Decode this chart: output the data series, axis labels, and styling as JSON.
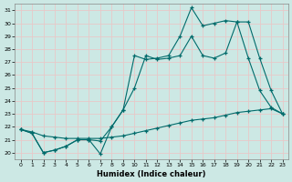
{
  "xlabel": "Humidex (Indice chaleur)",
  "bg_color": "#cce8e4",
  "line_color": "#006b6b",
  "grid_color": "#e8c8c8",
  "ylim": [
    19.5,
    31.5
  ],
  "xlim": [
    -0.5,
    23.5
  ],
  "yticks": [
    20,
    21,
    22,
    23,
    24,
    25,
    26,
    27,
    28,
    29,
    30,
    31
  ],
  "xticks": [
    0,
    1,
    2,
    3,
    4,
    5,
    6,
    7,
    8,
    9,
    10,
    11,
    12,
    13,
    14,
    15,
    16,
    17,
    18,
    19,
    20,
    21,
    22,
    23
  ],
  "line1_x": [
    0,
    1,
    2,
    3,
    4,
    5,
    6,
    7,
    8,
    9,
    10,
    11,
    12,
    13,
    14,
    15,
    16,
    17,
    18,
    19,
    20,
    21,
    22,
    23
  ],
  "line1_y": [
    21.8,
    21.5,
    20.0,
    20.2,
    20.5,
    21.0,
    21.0,
    19.9,
    22.0,
    23.3,
    27.5,
    27.2,
    27.3,
    27.5,
    29.0,
    31.2,
    29.8,
    30.0,
    30.2,
    30.1,
    30.1,
    27.3,
    24.8,
    23.0
  ],
  "line2_x": [
    0,
    1,
    2,
    3,
    4,
    5,
    6,
    7,
    8,
    9,
    10,
    11,
    12,
    13,
    14,
    15,
    16,
    17,
    18,
    19,
    20,
    21,
    22,
    23
  ],
  "line2_y": [
    21.8,
    21.5,
    20.0,
    20.2,
    20.5,
    21.0,
    21.0,
    20.9,
    22.0,
    23.3,
    25.0,
    27.5,
    27.2,
    27.3,
    27.5,
    29.0,
    27.5,
    27.3,
    27.7,
    30.1,
    27.3,
    24.8,
    23.5,
    23.0
  ],
  "line3_x": [
    0,
    1,
    2,
    3,
    4,
    5,
    6,
    7,
    8,
    9,
    10,
    11,
    12,
    13,
    14,
    15,
    16,
    17,
    18,
    19,
    20,
    21,
    22,
    23
  ],
  "line3_y": [
    21.8,
    21.6,
    21.3,
    21.2,
    21.1,
    21.1,
    21.1,
    21.1,
    21.2,
    21.3,
    21.5,
    21.7,
    21.9,
    22.1,
    22.3,
    22.5,
    22.6,
    22.7,
    22.9,
    23.1,
    23.2,
    23.3,
    23.4,
    23.0
  ]
}
